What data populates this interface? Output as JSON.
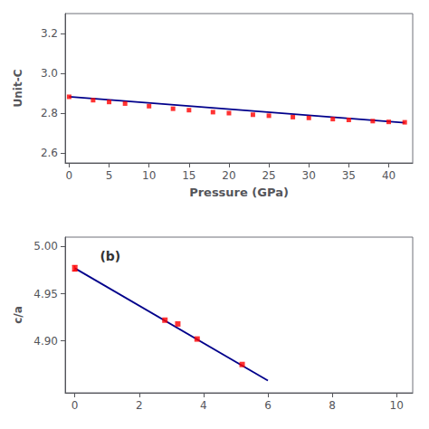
{
  "chart_data": [
    {
      "type": "scatter",
      "xlabel": "Pressure (GPa)",
      "ylabel": "Unit-C",
      "xlim": [
        -0.5,
        43
      ],
      "xticks": [
        0,
        5,
        10,
        15,
        20,
        25,
        30,
        35,
        40
      ],
      "ylim": [
        2.55,
        3.3
      ],
      "yticks": [
        2.6,
        2.8,
        {
          "value": 3.0,
          "label": "3.0"
        },
        3.2
      ],
      "grid": false,
      "series": [
        {
          "type": "line",
          "color": "#00008B",
          "line_style": "solid",
          "x": [
            0,
            42
          ],
          "values": [
            2.882,
            2.752
          ]
        },
        {
          "type": "scatter",
          "color": "#FF0000",
          "marker": "square",
          "x": [
            0,
            3,
            5,
            7,
            10,
            13,
            15,
            18,
            20,
            23,
            25,
            28,
            30,
            33,
            35,
            38,
            40,
            42
          ],
          "values": [
            2.882,
            2.865,
            2.856,
            2.848,
            2.835,
            2.822,
            2.815,
            2.805,
            2.8,
            2.792,
            2.787,
            2.78,
            2.776,
            2.77,
            2.766,
            2.76,
            2.756,
            2.754
          ]
        }
      ]
    },
    {
      "type": "scatter",
      "ylabel": "c/a",
      "annotation": "(b)",
      "xlim": [
        -0.3,
        10.5
      ],
      "xticks": [
        0,
        2,
        4,
        6,
        8,
        10
      ],
      "ylim": [
        4.845,
        5.01
      ],
      "yticks": [
        {
          "value": 4.9,
          "label": "4.90"
        },
        4.95,
        {
          "value": 5.0,
          "label": "5.00"
        }
      ],
      "grid": false,
      "series": [
        {
          "type": "line",
          "color": "#00008B",
          "line_style": "solid",
          "x": [
            0,
            6.0
          ],
          "values": [
            4.977,
            4.858
          ]
        },
        {
          "type": "scatter",
          "color": "#FF0000",
          "marker": "square",
          "x": [
            0,
            2.8,
            3.2,
            3.8,
            5.2
          ],
          "values": [
            4.977,
            4.922,
            4.918,
            4.902,
            4.875
          ],
          "errors": [
            0.003,
            null,
            null,
            null,
            null
          ]
        }
      ]
    }
  ]
}
